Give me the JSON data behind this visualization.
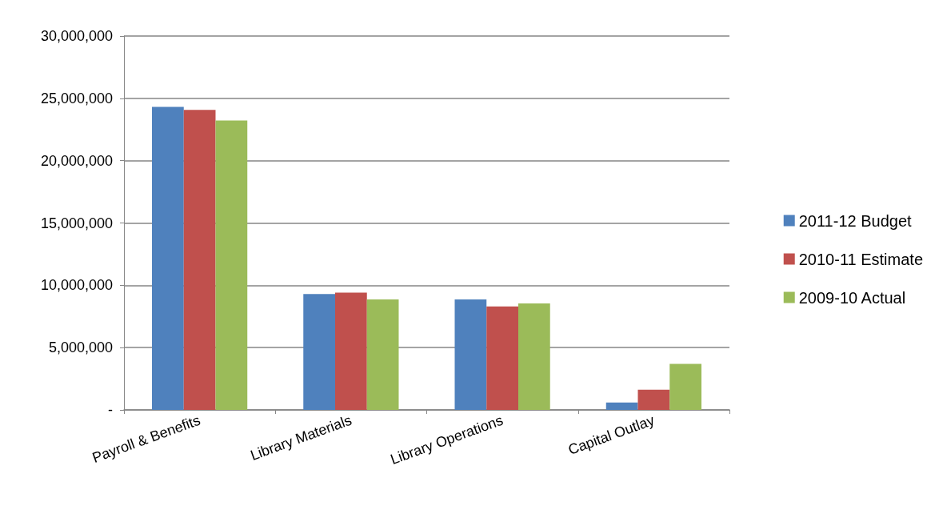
{
  "chart_data": {
    "type": "bar",
    "categories": [
      "Payroll & Benefits",
      "Library Materials",
      "Library Operations",
      "Capital Outlay"
    ],
    "series": [
      {
        "name": "2011-12 Budget",
        "color": "#4f81bd",
        "values": [
          24320000,
          9300000,
          8860000,
          600000
        ]
      },
      {
        "name": "2010-11 Estimate",
        "color": "#c0504d",
        "values": [
          24080000,
          9410000,
          8310000,
          1620000
        ]
      },
      {
        "name": "2009-10 Actual",
        "color": "#9bbb59",
        "values": [
          23220000,
          8860000,
          8540000,
          3690000
        ]
      }
    ],
    "ylim": [
      0,
      30000000
    ],
    "yticks": [
      {
        "value": 0,
        "label": "-"
      },
      {
        "value": 5000000,
        "label": "5,000,000"
      },
      {
        "value": 10000000,
        "label": "10,000,000"
      },
      {
        "value": 15000000,
        "label": "15,000,000"
      },
      {
        "value": 20000000,
        "label": "20,000,000"
      },
      {
        "value": 25000000,
        "label": "25,000,000"
      },
      {
        "value": 30000000,
        "label": "30,000,000"
      }
    ],
    "grid": "y",
    "legend": "right"
  }
}
